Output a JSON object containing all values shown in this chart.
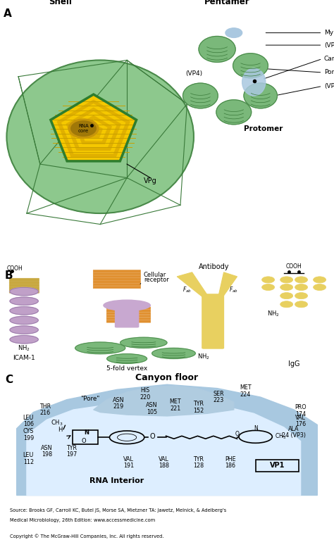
{
  "panel_A_label": "A",
  "panel_B_label": "B",
  "panel_C_label": "C",
  "shell_color": "#8dc88d",
  "shell_edge": "#4a8a4a",
  "shell_line": "#3a7a3a",
  "rna_yellow": "#f5c800",
  "rna_dark": "#c8a000",
  "rna_brown": "#b8860b",
  "pentagon_edge": "#2e7d2e",
  "pentamer_green": "#7ab87a",
  "blue_pocket": "#aac8e0",
  "icam_purple": "#c0a0c8",
  "icam_gold": "#c8a840",
  "antibody_yellow": "#e8d060",
  "receptor_purple": "#c8a8d0",
  "canyon_blue": "#a8c8e0",
  "canyon_inner": "#c8dff0",
  "pore_blue": "#b0cce0",
  "bg": "#ffffff",
  "source_line1": "Source: Brooks GF, Carroll KC, Butel JS, Morse SA, Mietzner TA: Jawetz, Melnick, & Adelberg's",
  "source_line2": "Medical Microbiology, 26th Edition: www.accessmedicine.com",
  "copyright": "Copyright © The McGraw-Hill Companies, Inc. All rights reserved."
}
